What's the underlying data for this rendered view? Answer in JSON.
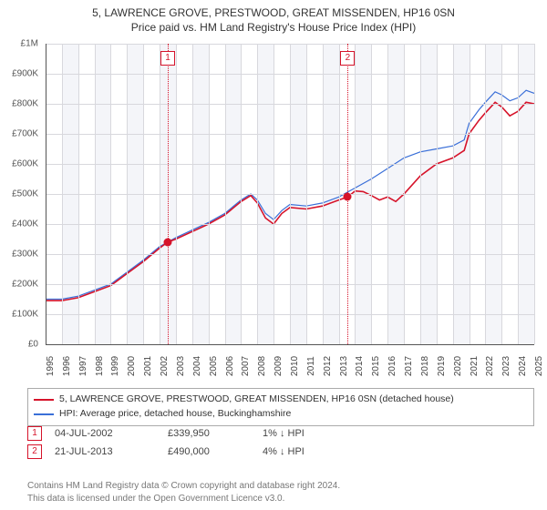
{
  "title_line1": "5, LAWRENCE GROVE, PRESTWOOD, GREAT MISSENDEN, HP16 0SN",
  "title_line2": "Price paid vs. HM Land Registry's House Price Index (HPI)",
  "chart": {
    "type": "line",
    "background_color": "#ffffff",
    "alt_band_color": "#f4f5f9",
    "grid_color": "#d8d8dd",
    "axis_color": "#555555",
    "x_years": [
      1995,
      1996,
      1997,
      1998,
      1999,
      2000,
      2001,
      2002,
      2003,
      2004,
      2005,
      2006,
      2007,
      2008,
      2009,
      2010,
      2011,
      2012,
      2013,
      2014,
      2015,
      2016,
      2017,
      2018,
      2019,
      2020,
      2021,
      2022,
      2023,
      2024,
      2025
    ],
    "xlim": [
      1995,
      2025
    ],
    "ylim": [
      0,
      1000000
    ],
    "ytick_step": 100000,
    "ytick_labels": [
      "£0",
      "£100K",
      "£200K",
      "£300K",
      "£400K",
      "£500K",
      "£600K",
      "£700K",
      "£800K",
      "£900K",
      "£1M"
    ],
    "series_property": {
      "label": "5, LAWRENCE GROVE, PRESTWOOD, GREAT MISSENDEN, HP16 0SN (detached house)",
      "color": "#d6132a",
      "width": 1.6,
      "points": [
        [
          1995,
          145000
        ],
        [
          1996,
          145000
        ],
        [
          1997,
          155000
        ],
        [
          1998,
          175000
        ],
        [
          1999,
          195000
        ],
        [
          2000,
          235000
        ],
        [
          2001,
          275000
        ],
        [
          2002,
          320000
        ],
        [
          2002.5,
          339950
        ],
        [
          2003,
          350000
        ],
        [
          2004,
          375000
        ],
        [
          2005,
          400000
        ],
        [
          2006,
          430000
        ],
        [
          2007,
          475000
        ],
        [
          2007.6,
          495000
        ],
        [
          2008,
          470000
        ],
        [
          2008.5,
          420000
        ],
        [
          2009,
          400000
        ],
        [
          2009.5,
          435000
        ],
        [
          2010,
          455000
        ],
        [
          2011,
          450000
        ],
        [
          2012,
          460000
        ],
        [
          2013,
          480000
        ],
        [
          2013.55,
          490000
        ],
        [
          2014,
          510000
        ],
        [
          2014.5,
          508000
        ],
        [
          2015,
          495000
        ],
        [
          2015.5,
          480000
        ],
        [
          2016,
          490000
        ],
        [
          2016.5,
          475000
        ],
        [
          2017,
          500000
        ],
        [
          2018,
          560000
        ],
        [
          2019,
          600000
        ],
        [
          2020,
          620000
        ],
        [
          2020.7,
          645000
        ],
        [
          2021,
          700000
        ],
        [
          2021.6,
          745000
        ],
        [
          2022,
          770000
        ],
        [
          2022.6,
          805000
        ],
        [
          2023,
          790000
        ],
        [
          2023.5,
          760000
        ],
        [
          2024,
          775000
        ],
        [
          2024.5,
          805000
        ],
        [
          2025,
          800000
        ]
      ]
    },
    "series_hpi": {
      "label": "HPI: Average price, detached house, Buckinghamshire",
      "color": "#3a6fd8",
      "width": 1.2,
      "points": [
        [
          1995,
          150000
        ],
        [
          1996,
          150000
        ],
        [
          1997,
          160000
        ],
        [
          1998,
          180000
        ],
        [
          1999,
          200000
        ],
        [
          2000,
          240000
        ],
        [
          2001,
          280000
        ],
        [
          2002,
          325000
        ],
        [
          2003,
          355000
        ],
        [
          2004,
          380000
        ],
        [
          2005,
          405000
        ],
        [
          2006,
          435000
        ],
        [
          2007,
          480000
        ],
        [
          2007.6,
          500000
        ],
        [
          2008,
          480000
        ],
        [
          2008.5,
          435000
        ],
        [
          2009,
          415000
        ],
        [
          2009.5,
          445000
        ],
        [
          2010,
          465000
        ],
        [
          2011,
          460000
        ],
        [
          2012,
          470000
        ],
        [
          2013,
          490000
        ],
        [
          2014,
          520000
        ],
        [
          2015,
          550000
        ],
        [
          2016,
          585000
        ],
        [
          2017,
          620000
        ],
        [
          2018,
          640000
        ],
        [
          2019,
          650000
        ],
        [
          2020,
          660000
        ],
        [
          2020.7,
          680000
        ],
        [
          2021,
          735000
        ],
        [
          2021.6,
          780000
        ],
        [
          2022,
          805000
        ],
        [
          2022.6,
          840000
        ],
        [
          2023,
          830000
        ],
        [
          2023.5,
          810000
        ],
        [
          2024,
          820000
        ],
        [
          2024.5,
          845000
        ],
        [
          2025,
          835000
        ]
      ]
    },
    "sale_markers": [
      {
        "n": 1,
        "year": 2002.5,
        "value": 339950,
        "color": "#d6132a"
      },
      {
        "n": 2,
        "year": 2013.55,
        "value": 490000,
        "color": "#d6132a"
      }
    ]
  },
  "legend": {
    "property_label": "5, LAWRENCE GROVE, PRESTWOOD, GREAT MISSENDEN, HP16 0SN (detached house)",
    "hpi_label": "HPI: Average price, detached house, Buckinghamshire"
  },
  "sales_table": [
    {
      "n": "1",
      "date": "04-JUL-2002",
      "price": "£339,950",
      "delta": "1% ↓ HPI"
    },
    {
      "n": "2",
      "date": "21-JUL-2013",
      "price": "£490,000",
      "delta": "4% ↓ HPI"
    }
  ],
  "footer_line1": "Contains HM Land Registry data © Crown copyright and database right 2024.",
  "footer_line2": "This data is licensed under the Open Government Licence v3.0.",
  "colors": {
    "marker_red": "#d6132a",
    "marker_blue": "#3a6fd8",
    "text_muted": "#777777"
  }
}
